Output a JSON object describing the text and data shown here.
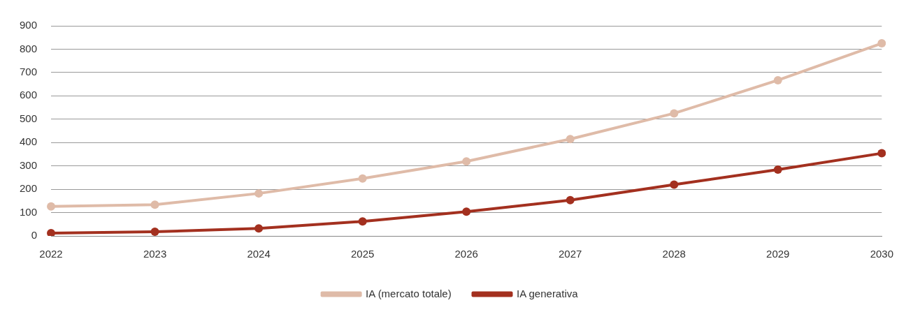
{
  "chart_data": {
    "type": "line",
    "categories": [
      "2022",
      "2023",
      "2024",
      "2025",
      "2026",
      "2027",
      "2028",
      "2029",
      "2030"
    ],
    "series": [
      {
        "name": "IA (mercato totale)",
        "color": "#dfbba8",
        "values": [
          126,
          134,
          182,
          246,
          319,
          415,
          525,
          667,
          825
        ]
      },
      {
        "name": "IA generativa",
        "color": "#a3301f",
        "values": [
          12,
          18,
          32,
          62,
          104,
          153,
          220,
          284,
          354
        ]
      }
    ],
    "ylim": [
      0,
      900
    ],
    "yticks": [
      0,
      100,
      200,
      300,
      400,
      500,
      600,
      700,
      800,
      900
    ],
    "grid": "y",
    "legend": "bottom",
    "marker": "circle",
    "line_style": "solid"
  }
}
